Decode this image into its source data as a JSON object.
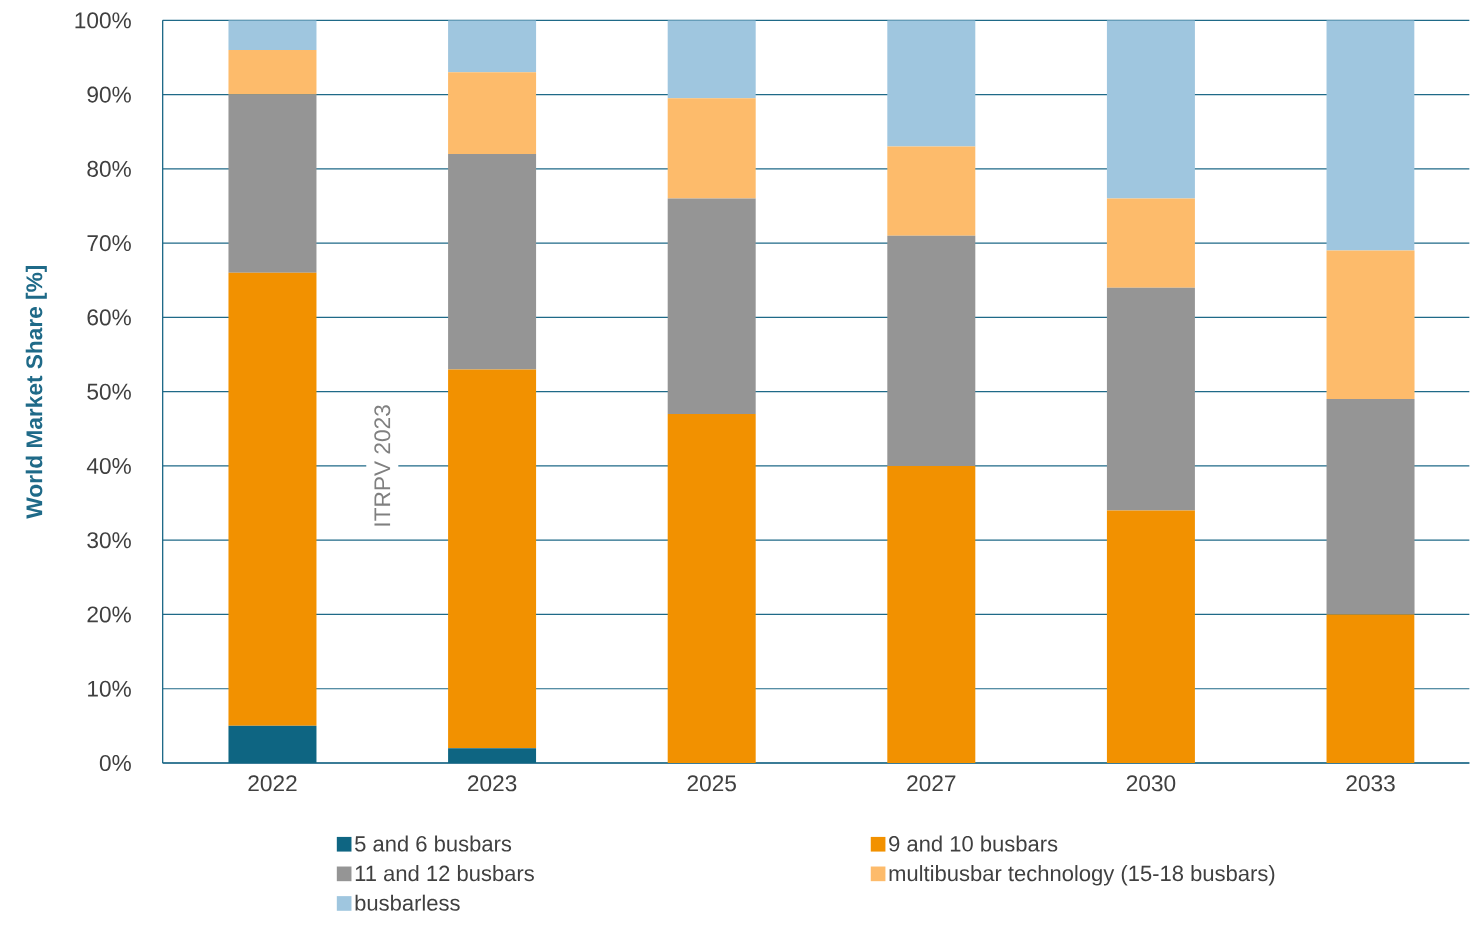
{
  "chart_data": {
    "type": "bar",
    "stacked": true,
    "ylabel": "World Market Share [%]",
    "categories": [
      "2022",
      "2023",
      "2025",
      "2027",
      "2030",
      "2033"
    ],
    "series": [
      {
        "name": "5 and 6 busbars",
        "color": "#0e6582",
        "values": [
          5,
          2,
          0,
          0,
          0,
          0
        ]
      },
      {
        "name": "9 and 10 busbars",
        "color": "#f29100",
        "values": [
          61,
          51,
          47,
          40,
          34,
          20
        ]
      },
      {
        "name": "11 and 12 busbars",
        "color": "#959595",
        "values": [
          24,
          29,
          29,
          31,
          30,
          29
        ]
      },
      {
        "name": "multibusbar technology (15-18 busbars)",
        "color": "#fdbb6b",
        "values": [
          6,
          11,
          13.5,
          12,
          12,
          20
        ]
      },
      {
        "name": "busbarless",
        "color": "#9fc6df",
        "values": [
          4,
          7,
          10.5,
          17,
          24,
          31
        ]
      }
    ],
    "ylim": [
      0,
      100
    ],
    "yticks": [
      {
        "value": 0,
        "label": "0%"
      },
      {
        "value": 10,
        "label": "10%"
      },
      {
        "value": 20,
        "label": "20%"
      },
      {
        "value": 30,
        "label": "30%"
      },
      {
        "value": 40,
        "label": "40%"
      },
      {
        "value": 50,
        "label": "50%"
      },
      {
        "value": 60,
        "label": "60%"
      },
      {
        "value": 70,
        "label": "70%"
      },
      {
        "value": 80,
        "label": "80%"
      },
      {
        "value": 90,
        "label": "90%"
      },
      {
        "value": 100,
        "label": "100%"
      }
    ],
    "grid": "y",
    "legend": "bottom",
    "annotations": [
      "ITRPV 2023"
    ]
  }
}
